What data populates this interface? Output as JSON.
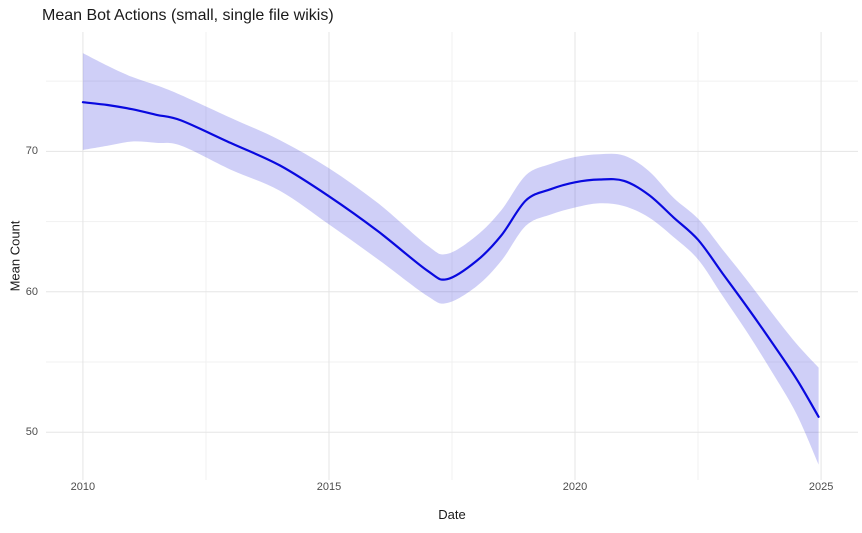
{
  "colors": {
    "line": "#0909df",
    "ribbon": "rgba(30,30,215,0.21)",
    "grid_major": "#e5e5e5",
    "grid_minor": "#f1f1f1",
    "tick_text": "#4d4d4d",
    "title_text": "#1a1a1a",
    "background": "#ffffff"
  },
  "chart_data": {
    "type": "line",
    "title": "Mean Bot Actions (small, single file wikis)",
    "xlabel": "Date",
    "ylabel": "Mean Count",
    "xlim": [
      2009.25,
      2025.75
    ],
    "ylim": [
      46.6,
      78.5
    ],
    "x_ticks": [
      {
        "value": 2010,
        "label": "2010"
      },
      {
        "value": 2015,
        "label": "2015"
      },
      {
        "value": 2020,
        "label": "2020"
      },
      {
        "value": 2025,
        "label": "2025"
      }
    ],
    "x_minor_ticks": [
      2012.5,
      2017.5,
      2022.5
    ],
    "y_ticks": [
      {
        "value": 50,
        "label": "50"
      },
      {
        "value": 60,
        "label": "60"
      },
      {
        "value": 70,
        "label": "70"
      }
    ],
    "y_minor_ticks": [
      55,
      65,
      75
    ],
    "grid": true,
    "legend": false,
    "series": [
      {
        "name": "mean-bot-actions-smoothed",
        "has_confidence_band": true,
        "points": [
          {
            "x": 2010.0,
            "mean": 73.5,
            "lower": 70.1,
            "upper": 77.0
          },
          {
            "x": 2010.5,
            "mean": 73.3,
            "lower": 70.4,
            "upper": 76.1
          },
          {
            "x": 2011.0,
            "mean": 73.0,
            "lower": 70.7,
            "upper": 75.3
          },
          {
            "x": 2011.5,
            "mean": 72.6,
            "lower": 70.6,
            "upper": 74.7
          },
          {
            "x": 2012.0,
            "mean": 72.2,
            "lower": 70.4,
            "upper": 74.0
          },
          {
            "x": 2013.0,
            "mean": 70.6,
            "lower": 68.7,
            "upper": 72.4
          },
          {
            "x": 2014.0,
            "mean": 69.0,
            "lower": 67.2,
            "upper": 70.8
          },
          {
            "x": 2015.0,
            "mean": 66.8,
            "lower": 64.8,
            "upper": 68.8
          },
          {
            "x": 2016.0,
            "mean": 64.3,
            "lower": 62.3,
            "upper": 66.3
          },
          {
            "x": 2017.0,
            "mean": 61.5,
            "lower": 59.7,
            "upper": 63.3
          },
          {
            "x": 2017.4,
            "mean": 60.9,
            "lower": 59.2,
            "upper": 62.7
          },
          {
            "x": 2018.0,
            "mean": 62.2,
            "lower": 60.4,
            "upper": 64.0
          },
          {
            "x": 2018.5,
            "mean": 64.0,
            "lower": 62.2,
            "upper": 65.8
          },
          {
            "x": 2019.0,
            "mean": 66.5,
            "lower": 64.7,
            "upper": 68.3
          },
          {
            "x": 2019.5,
            "mean": 67.3,
            "lower": 65.5,
            "upper": 69.1
          },
          {
            "x": 2020.0,
            "mean": 67.8,
            "lower": 66.0,
            "upper": 69.6
          },
          {
            "x": 2020.5,
            "mean": 68.0,
            "lower": 66.3,
            "upper": 69.8
          },
          {
            "x": 2021.0,
            "mean": 67.9,
            "lower": 66.1,
            "upper": 69.7
          },
          {
            "x": 2021.5,
            "mean": 66.9,
            "lower": 65.3,
            "upper": 68.6
          },
          {
            "x": 2022.0,
            "mean": 65.3,
            "lower": 63.9,
            "upper": 66.7
          },
          {
            "x": 2022.5,
            "mean": 63.7,
            "lower": 62.3,
            "upper": 65.2
          },
          {
            "x": 2023.0,
            "mean": 61.3,
            "lower": 59.7,
            "upper": 63.0
          },
          {
            "x": 2023.5,
            "mean": 58.9,
            "lower": 57.1,
            "upper": 60.8
          },
          {
            "x": 2024.0,
            "mean": 56.4,
            "lower": 54.3,
            "upper": 58.5
          },
          {
            "x": 2024.5,
            "mean": 53.8,
            "lower": 51.3,
            "upper": 56.3
          },
          {
            "x": 2024.95,
            "mean": 51.1,
            "lower": 47.7,
            "upper": 54.6
          }
        ]
      }
    ]
  }
}
